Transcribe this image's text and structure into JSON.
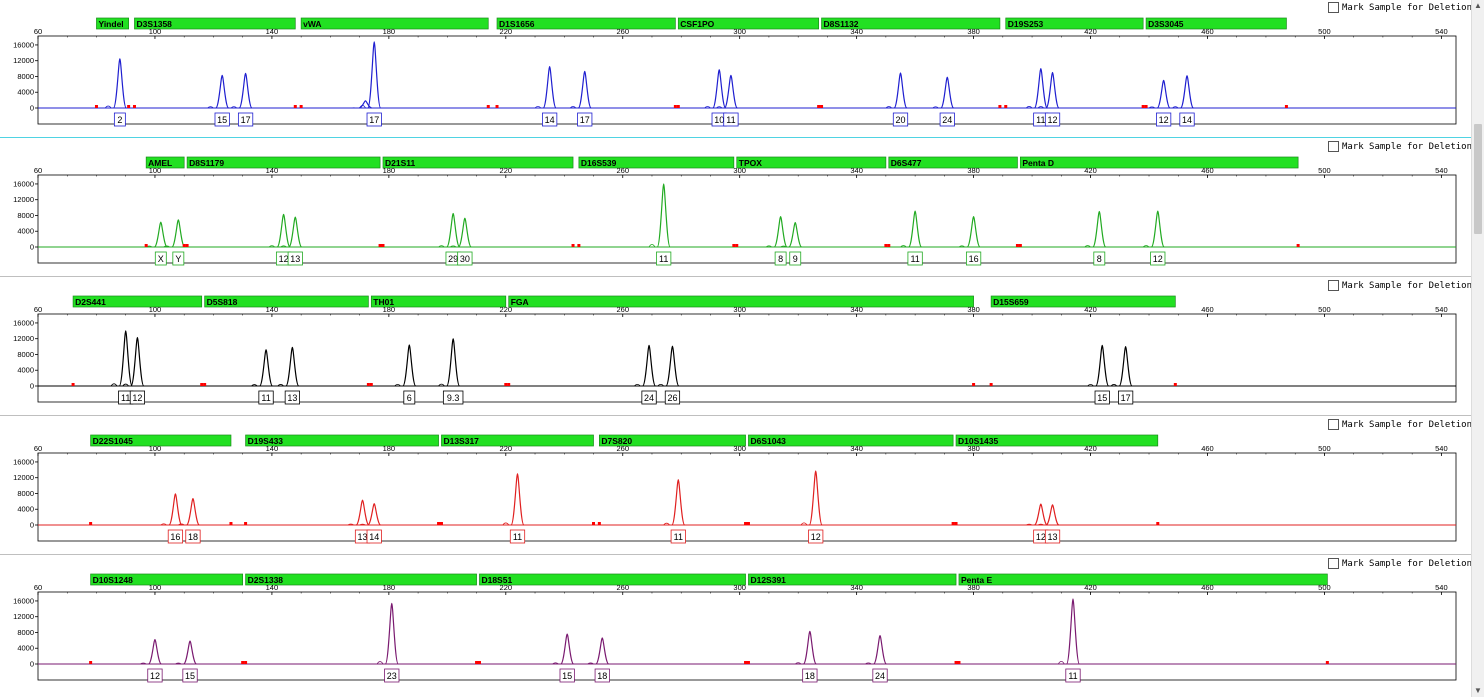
{
  "mark_label": "Mark Sample for Deletion",
  "x_ticks": [
    60,
    100,
    140,
    180,
    220,
    260,
    300,
    340,
    380,
    420,
    460,
    500,
    540
  ],
  "y_ticks": [
    "16000",
    "12000",
    "8000",
    "4000",
    "0"
  ],
  "chart_data": [
    {
      "type": "line",
      "color": "#1f1fd0",
      "xlim": [
        60,
        545
      ],
      "ylim": [
        0,
        17000
      ],
      "markers": [
        {
          "name": "Yindel",
          "start": 80,
          "end": 91
        },
        {
          "name": "D3S1358",
          "start": 93,
          "end": 148
        },
        {
          "name": "vWA",
          "start": 150,
          "end": 214
        },
        {
          "name": "D1S1656",
          "start": 217,
          "end": 278
        },
        {
          "name": "CSF1PO",
          "start": 279,
          "end": 327
        },
        {
          "name": "D8S1132",
          "start": 328,
          "end": 389
        },
        {
          "name": "D19S253",
          "start": 391,
          "end": 438
        },
        {
          "name": "D3S3045",
          "start": 439,
          "end": 487
        }
      ],
      "peaks": [
        {
          "x": 88,
          "h": 12500,
          "label": "2"
        },
        {
          "x": 123,
          "h": 8300,
          "label": "15"
        },
        {
          "x": 131,
          "h": 8800,
          "label": "17"
        },
        {
          "x": 172,
          "h": 1800,
          "label": ""
        },
        {
          "x": 175,
          "h": 16800,
          "label": "17"
        },
        {
          "x": 235,
          "h": 10500,
          "label": "14"
        },
        {
          "x": 247,
          "h": 9300,
          "label": "17"
        },
        {
          "x": 293,
          "h": 9700,
          "label": "10"
        },
        {
          "x": 297,
          "h": 8300,
          "label": "11"
        },
        {
          "x": 355,
          "h": 8900,
          "label": "20"
        },
        {
          "x": 371,
          "h": 7800,
          "label": "24"
        },
        {
          "x": 403,
          "h": 10000,
          "label": "11"
        },
        {
          "x": 407,
          "h": 9000,
          "label": "12"
        },
        {
          "x": 445,
          "h": 7000,
          "label": "12"
        },
        {
          "x": 453,
          "h": 8200,
          "label": "14"
        }
      ]
    },
    {
      "type": "line",
      "color": "#22aa22",
      "xlim": [
        60,
        545
      ],
      "ylim": [
        0,
        17000
      ],
      "markers": [
        {
          "name": "AMEL",
          "start": 97,
          "end": 110
        },
        {
          "name": "D8S1179",
          "start": 111,
          "end": 177
        },
        {
          "name": "D21S11",
          "start": 178,
          "end": 243
        },
        {
          "name": "D16S539",
          "start": 245,
          "end": 298
        },
        {
          "name": "TPOX",
          "start": 299,
          "end": 350
        },
        {
          "name": "D6S477",
          "start": 351,
          "end": 395
        },
        {
          "name": "Penta D",
          "start": 396,
          "end": 491
        }
      ],
      "peaks": [
        {
          "x": 102,
          "h": 6300,
          "label": "X"
        },
        {
          "x": 108,
          "h": 6900,
          "label": "Y"
        },
        {
          "x": 144,
          "h": 8300,
          "label": "12"
        },
        {
          "x": 148,
          "h": 7600,
          "label": "13"
        },
        {
          "x": 202,
          "h": 8500,
          "label": "29"
        },
        {
          "x": 206,
          "h": 7300,
          "label": "30"
        },
        {
          "x": 274,
          "h": 16000,
          "label": "11"
        },
        {
          "x": 314,
          "h": 7700,
          "label": "8"
        },
        {
          "x": 319,
          "h": 6200,
          "label": "9"
        },
        {
          "x": 360,
          "h": 9100,
          "label": "11"
        },
        {
          "x": 380,
          "h": 7700,
          "label": "16"
        },
        {
          "x": 423,
          "h": 9000,
          "label": "8"
        },
        {
          "x": 443,
          "h": 9100,
          "label": "12"
        }
      ]
    },
    {
      "type": "line",
      "color": "#000000",
      "xlim": [
        60,
        545
      ],
      "ylim": [
        0,
        17000
      ],
      "markers": [
        {
          "name": "D2S441",
          "start": 72,
          "end": 116
        },
        {
          "name": "D5S818",
          "start": 117,
          "end": 173
        },
        {
          "name": "TH01",
          "start": 174,
          "end": 220
        },
        {
          "name": "FGA",
          "start": 221,
          "end": 380
        },
        {
          "name": "D15S659",
          "start": 386,
          "end": 449
        }
      ],
      "peaks": [
        {
          "x": 90,
          "h": 14000,
          "label": "11"
        },
        {
          "x": 94,
          "h": 12300,
          "label": "12"
        },
        {
          "x": 138,
          "h": 9200,
          "label": "11"
        },
        {
          "x": 147,
          "h": 9800,
          "label": "13"
        },
        {
          "x": 187,
          "h": 10400,
          "label": "6"
        },
        {
          "x": 202,
          "h": 12000,
          "label": "9.3"
        },
        {
          "x": 269,
          "h": 10300,
          "label": "24"
        },
        {
          "x": 277,
          "h": 10100,
          "label": "26"
        },
        {
          "x": 424,
          "h": 10300,
          "label": "15"
        },
        {
          "x": 432,
          "h": 10000,
          "label": "17"
        }
      ]
    },
    {
      "type": "line",
      "color": "#e02020",
      "xlim": [
        60,
        545
      ],
      "ylim": [
        0,
        17000
      ],
      "markers": [
        {
          "name": "D22S1045",
          "start": 78,
          "end": 126
        },
        {
          "name": "D19S433",
          "start": 131,
          "end": 197
        },
        {
          "name": "D13S317",
          "start": 198,
          "end": 250
        },
        {
          "name": "D7S820",
          "start": 252,
          "end": 302
        },
        {
          "name": "D6S1043",
          "start": 303,
          "end": 373
        },
        {
          "name": "D10S1435",
          "start": 374,
          "end": 443
        }
      ],
      "peaks": [
        {
          "x": 107,
          "h": 7900,
          "label": "16"
        },
        {
          "x": 113,
          "h": 6700,
          "label": "18"
        },
        {
          "x": 171,
          "h": 6300,
          "label": "13"
        },
        {
          "x": 175,
          "h": 5400,
          "label": "14"
        },
        {
          "x": 224,
          "h": 13000,
          "label": "11"
        },
        {
          "x": 279,
          "h": 11500,
          "label": "11"
        },
        {
          "x": 326,
          "h": 13700,
          "label": "12"
        },
        {
          "x": 403,
          "h": 5300,
          "label": "12"
        },
        {
          "x": 407,
          "h": 5100,
          "label": "13"
        }
      ]
    },
    {
      "type": "line",
      "color": "#7a1a70",
      "xlim": [
        60,
        545
      ],
      "ylim": [
        0,
        17000
      ],
      "markers": [
        {
          "name": "D10S1248",
          "start": 78,
          "end": 130
        },
        {
          "name": "D2S1338",
          "start": 131,
          "end": 210
        },
        {
          "name": "D18S51",
          "start": 211,
          "end": 302
        },
        {
          "name": "D12S391",
          "start": 303,
          "end": 374
        },
        {
          "name": "Penta E",
          "start": 375,
          "end": 501
        }
      ],
      "peaks": [
        {
          "x": 100,
          "h": 6200,
          "label": "12"
        },
        {
          "x": 112,
          "h": 5800,
          "label": "15"
        },
        {
          "x": 181,
          "h": 15400,
          "label": "23"
        },
        {
          "x": 241,
          "h": 7600,
          "label": "15"
        },
        {
          "x": 253,
          "h": 6600,
          "label": "18"
        },
        {
          "x": 324,
          "h": 8300,
          "label": "18"
        },
        {
          "x": 348,
          "h": 7200,
          "label": "24"
        },
        {
          "x": 414,
          "h": 16500,
          "label": "11"
        }
      ]
    }
  ]
}
